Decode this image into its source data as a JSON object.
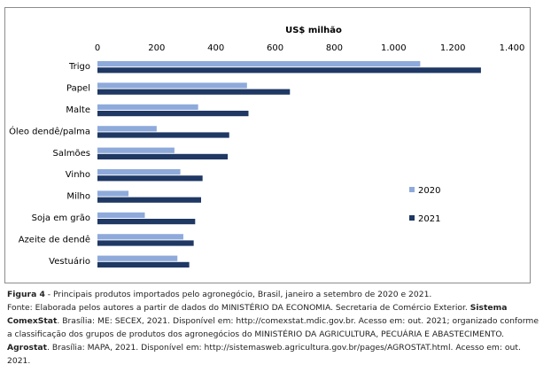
{
  "chart_data": {
    "type": "bar",
    "orientation": "horizontal",
    "title": "US$ milhão",
    "categories": [
      "Trigo",
      "Papel",
      "Malte",
      "Óleo dendê/palma",
      "Salmões",
      "Vinho",
      "Milho",
      "Soja em grão",
      "Azeite de dendê",
      "Vestuário"
    ],
    "xlim": [
      0,
      1400
    ],
    "ticks": [
      0,
      200,
      400,
      600,
      800,
      1000,
      1200,
      1400
    ],
    "tick_labels": [
      "0",
      "200",
      "400",
      "600",
      "800",
      "1.000",
      "1.200",
      "1.400"
    ],
    "series": [
      {
        "name": "2020",
        "color": "#8eaadb",
        "values": [
          1090,
          505,
          340,
          200,
          260,
          280,
          105,
          160,
          290,
          270
        ]
      },
      {
        "name": "2021",
        "color": "#1f3864",
        "values": [
          1295,
          650,
          510,
          445,
          440,
          355,
          350,
          330,
          325,
          310
        ]
      }
    ],
    "grid": false,
    "legend": "right"
  },
  "caption": {
    "figure_label": "Figura 4",
    "figure_text": " - Principais produtos importados pelo agronegócio, Brasil, janeiro a setembro de 2020 e 2021.",
    "source_1": "Fonte: Elaborada pelos autores a partir de dados do MINISTÉRIO DA ECONOMIA. Secretaria de Comércio Exterior. ",
    "source_bold_1": "Sistema ComexStat",
    "source_2": ". Brasília: ME: SECEX, 2021. Disponível em: http://comexstat.mdic.gov.br. Acesso em: out. 2021; organizado conforme a classificação dos grupos de produtos dos agronegócios do MINISTÉRIO DA AGRICULTURA, PECUÁRIA E ABASTECIMENTO. ",
    "source_bold_2": "Agrostat",
    "source_3": ". Brasília: MAPA, 2021. Disponível em: http://sistemasweb.agricultura.gov.br/pages/AGROSTAT.html. Acesso em: out. 2021."
  }
}
